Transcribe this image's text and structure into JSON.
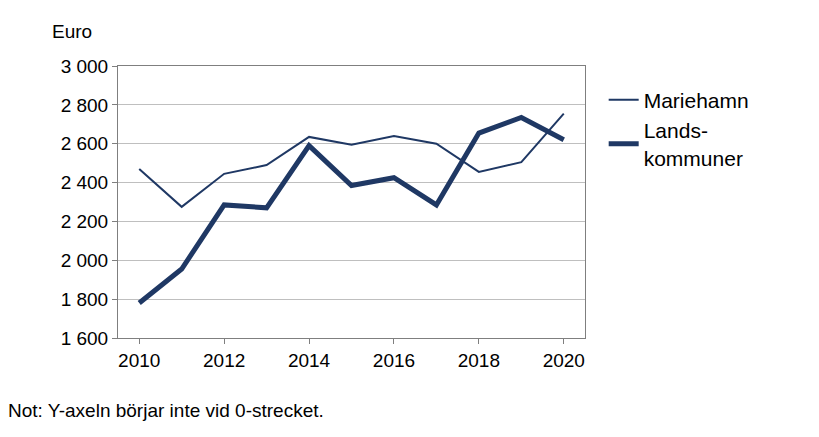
{
  "chart_data": {
    "type": "line",
    "ylabel": "Euro",
    "note": "Not: Y-axeln börjar inte vid 0-strecket.",
    "x": [
      2010,
      2011,
      2012,
      2013,
      2014,
      2015,
      2016,
      2017,
      2018,
      2019,
      2020
    ],
    "series": [
      {
        "name": "Mariehamn",
        "color": "#1f3864",
        "line_style": "thin",
        "values": [
          2470,
          2275,
          2445,
          2490,
          2635,
          2595,
          2640,
          2600,
          2455,
          2505,
          2755
        ]
      },
      {
        "name": "Lands-\nkommuner",
        "color": "#1f3864",
        "line_style": "thick",
        "values": [
          1780,
          1955,
          2285,
          2270,
          2590,
          2385,
          2425,
          2285,
          2655,
          2735,
          2620
        ]
      }
    ],
    "xlim": [
      2009.5,
      2020.5
    ],
    "xticks": [
      2010,
      2012,
      2014,
      2016,
      2018,
      2020
    ],
    "ylim": [
      1600,
      3000
    ],
    "yticks": [
      {
        "value": 1600,
        "label": "1 600"
      },
      {
        "value": 1800,
        "label": "1 800"
      },
      {
        "value": 2000,
        "label": "2 000"
      },
      {
        "value": 2200,
        "label": "2 200"
      },
      {
        "value": 2400,
        "label": "2 400"
      },
      {
        "value": 2600,
        "label": "2 600"
      },
      {
        "value": 2800,
        "label": "2 800"
      },
      {
        "value": 3000,
        "label": "3 000"
      }
    ],
    "grid": true,
    "legend": "right"
  }
}
